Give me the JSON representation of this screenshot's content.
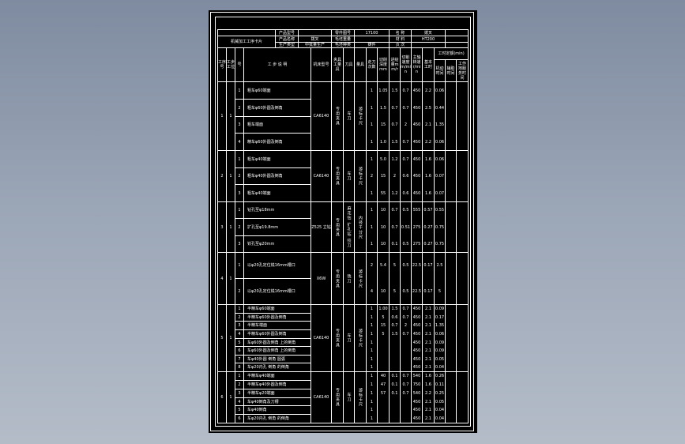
{
  "header": {
    "row1": [
      "",
      "产品型号",
      "",
      "零件图号",
      "17100",
      "名 称",
      "拨叉",
      ""
    ],
    "row2": [
      "机械加工工序卡片",
      "产品名称",
      "拨叉",
      "毛坯重量",
      "",
      "材 料",
      "HT200",
      ""
    ],
    "row3": [
      "生产类型",
      "中批量生产",
      "毛坯种类",
      "铸件",
      "页 次",
      "",
      ""
    ]
  },
  "columns": {
    "process_no": "工序号",
    "step_group": "工步工位",
    "step_no": "号",
    "description": "工 步 说 明",
    "machine": "机床型号",
    "fixture": "夹具工量具",
    "tool": "刀具",
    "gauge": "量具",
    "passes": "走刀次数",
    "depth": "切削深度mm",
    "feed": "进给量mm/r",
    "speed": "切削速度m/min",
    "rpm": "主轴转速r/min",
    "base_time": "基本工时",
    "time_quota": "工时定额(min)",
    "time_sub": [
      "机动时间",
      "辅助时间",
      "工作地服务时间"
    ]
  },
  "groups": [
    {
      "process": "1",
      "station": "1",
      "machine": "CA6140",
      "fixture": "专用夹具",
      "tool": "车刀",
      "gauge": "游标卡尺",
      "steps": [
        {
          "no": "1",
          "desc": "粗车φ60端面",
          "vals": [
            "1",
            "1.05",
            "1.5",
            "0.7",
            "450",
            "2.2",
            "0.06"
          ]
        },
        {
          "no": "2",
          "desc": "粗车φ60外圆及倒角",
          "vals": [
            "1",
            "1.5",
            "0.7",
            "0.7",
            "450",
            "2.5",
            "0.44"
          ]
        },
        {
          "no": "3",
          "desc": "粗车端面",
          "vals": [
            "1",
            "15",
            "0.7",
            "2",
            "450",
            "2.1",
            "1.35"
          ]
        },
        {
          "no": "4",
          "desc": "精车φ60外圆及倒角",
          "vals": [
            "1",
            "1.0",
            "1.5",
            "0.7",
            "450",
            "2.2",
            "0.06"
          ]
        }
      ]
    },
    {
      "process": "2",
      "station": "1",
      "machine": "CA6140",
      "fixture": "专用夹具",
      "tool": "车刀",
      "gauge": "游标卡尺",
      "steps": [
        {
          "no": "1",
          "desc": "粗车φ40端面",
          "vals": [
            "1",
            "5.0",
            "1.2",
            "0.7",
            "450",
            "1.6",
            "0.06"
          ]
        },
        {
          "no": "2",
          "desc": "粗车φ40外圆及倒角",
          "vals": [
            "2",
            "15",
            "2",
            "0.6",
            "450",
            "1.6",
            "0.07"
          ]
        },
        {
          "no": "3",
          "desc": "粗车φ40端面",
          "vals": [
            "1",
            "55",
            "1.2",
            "0.6",
            "450",
            "1.6",
            "0.07"
          ]
        }
      ]
    },
    {
      "process": "3",
      "station": "1",
      "machine": "Z525 立钻",
      "fixture": "专用夹具",
      "tool": "麻花钻 扩孔钻 铰刀",
      "gauge": "内径千分尺",
      "steps": [
        {
          "no": "1",
          "desc": "钻孔至φ18mm",
          "vals": [
            "1",
            "10",
            "0.7",
            "0.5",
            "555",
            "0.57",
            "0.55"
          ]
        },
        {
          "no": "2",
          "desc": "扩孔至φ19.8mm",
          "vals": [
            "1",
            "10",
            "0.7",
            "0.51",
            "275",
            "0.27",
            "0.75"
          ]
        },
        {
          "no": "3",
          "desc": "铰孔至φ20mm",
          "vals": [
            "1",
            "10",
            "0.1",
            "0.5",
            "275",
            "0.27",
            "0.75"
          ]
        }
      ]
    },
    {
      "process": "4",
      "station": "1",
      "machine": "X6W",
      "fixture": "专用夹具",
      "tool": "铣刀",
      "gauge": "游标卡尺",
      "steps": [
        {
          "no": "1",
          "desc": "以φ20孔定位铣16mm槽口",
          "vals": [
            "2",
            "5.4",
            "5",
            "0.5",
            "22.5",
            "0.17",
            "2.5"
          ]
        },
        {
          "no": "2",
          "desc": "以φ20孔定位铣16mm槽口",
          "vals": [
            "4",
            "10",
            "5",
            "0.5",
            "22.5",
            "0.17",
            "5"
          ]
        }
      ]
    },
    {
      "process": "5",
      "station": "1",
      "machine": "CA6140",
      "fixture": "专用夹具",
      "tool": "车刀",
      "gauge": "游标卡尺",
      "steps": [
        {
          "no": "1",
          "desc": "半精车φ60端面",
          "vals": [
            "1",
            "1.00",
            "1.5",
            "0.7",
            "450",
            "2.1",
            "0.09"
          ]
        },
        {
          "no": "2",
          "desc": "半精车φ60外圆及倒角",
          "vals": [
            "1",
            "5",
            "0.6",
            "0.7",
            "450",
            "2.1",
            "0.17"
          ]
        },
        {
          "no": "3",
          "desc": "半精车端面",
          "vals": [
            "1",
            "15",
            "0.7",
            "2",
            "450",
            "2.1",
            "1.35"
          ]
        },
        {
          "no": "4",
          "desc": "半精车φ60外圆及倒角",
          "vals": [
            "1",
            "5",
            "1.5",
            "0.7",
            "450",
            "2.1",
            "0.06"
          ]
        },
        {
          "no": "5",
          "desc": "车φ60外圆及倒角 上的倒角",
          "vals": [
            "1",
            "",
            "",
            "",
            "450",
            "2.1",
            "0.09"
          ]
        },
        {
          "no": "6",
          "desc": "车φ60外圆及倒角 上的倒角",
          "vals": [
            "1",
            "",
            "",
            "",
            "450",
            "2.1",
            "0.09"
          ]
        },
        {
          "no": "7",
          "desc": "车φ40外圆 倒角 圆弧",
          "vals": [
            "1",
            "",
            "",
            "",
            "450",
            "2.1",
            "0.05"
          ]
        },
        {
          "no": "8",
          "desc": "车φ20内孔 倒角 的倒角",
          "vals": [
            "1",
            "",
            "",
            "",
            "450",
            "2.1",
            "0.04"
          ]
        }
      ]
    },
    {
      "process": "6",
      "station": "1",
      "machine": "CA6140",
      "fixture": "专用夹具",
      "tool": "车刀",
      "gauge": "游标卡尺",
      "steps": [
        {
          "no": "1",
          "desc": "半精车φ40端面",
          "vals": [
            "1",
            "40",
            "0.1",
            "0.7",
            "540",
            "1.6",
            "0.26"
          ]
        },
        {
          "no": "2",
          "desc": "半精车φ40外圆及倒角",
          "vals": [
            "1",
            "47",
            "0.1",
            "0.7",
            "750",
            "1.6",
            "0.11"
          ]
        },
        {
          "no": "3",
          "desc": "半精车φ20端面",
          "vals": [
            "1",
            "57",
            "0.1",
            "0.7",
            "540",
            "2.2",
            "0.25"
          ]
        },
        {
          "no": "4",
          "desc": "车φ40倒角及刀槽",
          "vals": [
            "1",
            "",
            "",
            "",
            "450",
            "2.1",
            "0.05"
          ]
        },
        {
          "no": "5",
          "desc": "车φ40倒角",
          "vals": [
            "1",
            "",
            "",
            "",
            "450",
            "2.1",
            "0.04"
          ]
        },
        {
          "no": "6",
          "desc": "车φ20内孔 倒角 的倒角",
          "vals": [
            "1",
            "",
            "",
            "",
            "450",
            "2.1",
            "0.04"
          ]
        }
      ]
    }
  ],
  "colors": {
    "background": "#000000",
    "lines": "#ffffff",
    "viewport": "#8a96a8"
  }
}
